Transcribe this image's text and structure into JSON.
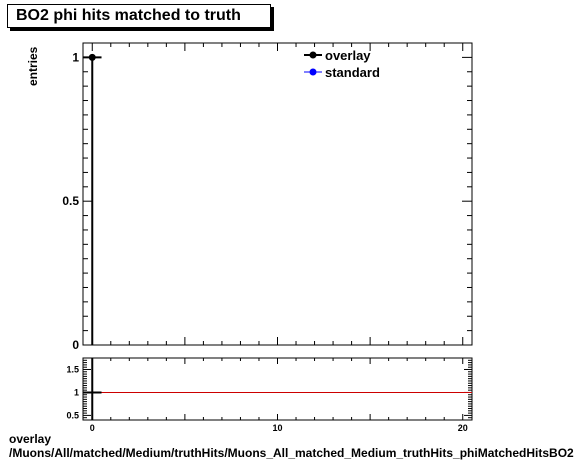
{
  "chart_data": [
    {
      "type": "line",
      "title": "BO2 phi hits matched to truth",
      "ylabel": "entries",
      "xlim": [
        -0.5,
        20.5
      ],
      "ylim": [
        0,
        1.05
      ],
      "yticks": [
        {
          "value": 0,
          "label": "0"
        },
        {
          "value": 0.5,
          "label": "0.5"
        },
        {
          "value": 1,
          "label": "1"
        }
      ],
      "legend_position": "top-right",
      "series": [
        {
          "name": "overlay",
          "color": "#000000",
          "marker": "circle",
          "x": [
            0
          ],
          "y": [
            1
          ],
          "xerr": 0.5
        },
        {
          "name": "standard",
          "color": "#0000ff",
          "marker": "circle",
          "x": [],
          "y": []
        }
      ],
      "grid": false
    },
    {
      "type": "line",
      "xlim": [
        -0.5,
        20.5
      ],
      "ylim": [
        0.4,
        1.75
      ],
      "xticks": [
        {
          "value": 0,
          "label": "0"
        },
        {
          "value": 10,
          "label": "10"
        },
        {
          "value": 20,
          "label": "20"
        }
      ],
      "yticks": [
        {
          "value": 0.5,
          "label": "0.5"
        },
        {
          "value": 1,
          "label": "1"
        },
        {
          "value": 1.5,
          "label": "1.5"
        }
      ],
      "reference_line": {
        "y": 1,
        "color": "#cc0000"
      },
      "series": [
        {
          "name": "",
          "color": "#000000",
          "x": [
            0
          ],
          "y": [
            1
          ],
          "xerr": 0.5
        }
      ],
      "grid": false
    }
  ],
  "footer": {
    "line1": "overlay",
    "line2": "/Muons/All/matched/Medium/truthHits/Muons_All_matched_Medium_truthHits_phiMatchedHitsBO2"
  }
}
